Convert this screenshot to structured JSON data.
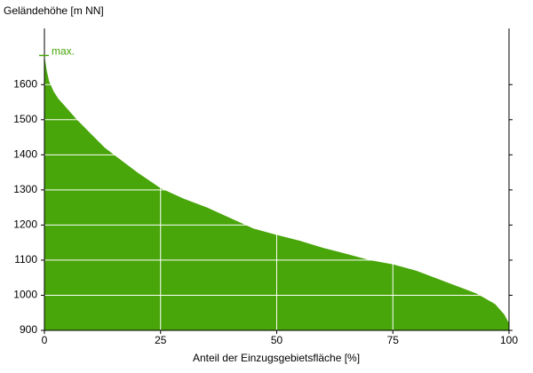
{
  "chart_data": {
    "type": "area",
    "y_label": "Geländehöhe [m NN]",
    "x_label": "Anteil der Einzugsgebietsfläche [%]",
    "annotation": "max.",
    "color": "#48a50a",
    "grid_color": "#ffffff",
    "x": [
      0,
      0.5,
      1,
      2,
      3,
      5,
      7,
      10,
      13,
      17,
      20,
      25,
      30,
      35,
      40,
      45,
      50,
      55,
      60,
      65,
      70,
      75,
      80,
      85,
      90,
      93,
      95,
      97,
      99,
      100
    ],
    "values": [
      1683,
      1640,
      1610,
      1580,
      1560,
      1530,
      1500,
      1460,
      1420,
      1380,
      1350,
      1305,
      1275,
      1250,
      1220,
      1190,
      1172,
      1155,
      1135,
      1118,
      1100,
      1088,
      1070,
      1045,
      1020,
      1005,
      990,
      975,
      945,
      920
    ],
    "xlim": [
      0,
      100
    ],
    "xticks": [
      0,
      25,
      50,
      75,
      100
    ],
    "ylim": [
      900,
      1760
    ],
    "yticks": [
      900,
      1000,
      1100,
      1200,
      1300,
      1400,
      1500,
      1600
    ],
    "grid": true
  }
}
